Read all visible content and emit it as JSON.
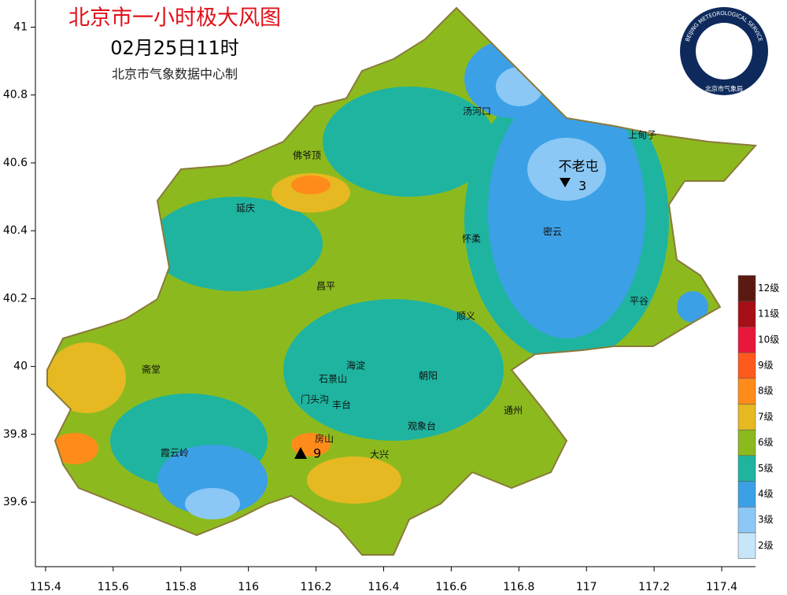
{
  "header": {
    "title": "北京市一小时极大风图",
    "time": "02月25日11时",
    "subtitle": "北京市气象数据中心制"
  },
  "logo": {
    "top": "BEIJING METEOROLOGICAL SERVICE",
    "bottom": "北京市气象局"
  },
  "axes": {
    "xlim": [
      115.37,
      117.5
    ],
    "ylim": [
      39.41,
      41.08
    ],
    "xticks": [
      115.4,
      115.6,
      115.8,
      116,
      116.2,
      116.4,
      116.6,
      116.8,
      117,
      117.2,
      117.4
    ],
    "yticks": [
      39.6,
      39.8,
      40,
      40.2,
      40.4,
      40.6,
      40.8,
      41
    ]
  },
  "places": [
    "汤河口",
    "上甸子",
    "佛爷顶",
    "延庆",
    "怀柔",
    "密云",
    "昌平",
    "平谷",
    "顺义",
    "斋堂",
    "海淀",
    "石景山",
    "朝阳",
    "门头沟",
    "丰台",
    "霞云岭",
    "房山",
    "大兴",
    "观象台",
    "通州"
  ],
  "extremes": {
    "max": {
      "value": 9
    },
    "min": {
      "name": "不老屯",
      "value": 3
    }
  },
  "legend": [
    {
      "label": "12级",
      "color": "#5a1a12"
    },
    {
      "label": "11级",
      "color": "#a50f15"
    },
    {
      "label": "10级",
      "color": "#e8173c"
    },
    {
      "label": "9级",
      "color": "#ff5a1e"
    },
    {
      "label": "8级",
      "color": "#ff8c1a"
    },
    {
      "label": "7级",
      "color": "#e6b822"
    },
    {
      "label": "6级",
      "color": "#8cba1e"
    },
    {
      "label": "5级",
      "color": "#1fb4a0"
    },
    {
      "label": "4级",
      "color": "#3ca0e6"
    },
    {
      "label": "3级",
      "color": "#8cc8f5"
    },
    {
      "label": "2级",
      "color": "#c8e6fa"
    }
  ]
}
